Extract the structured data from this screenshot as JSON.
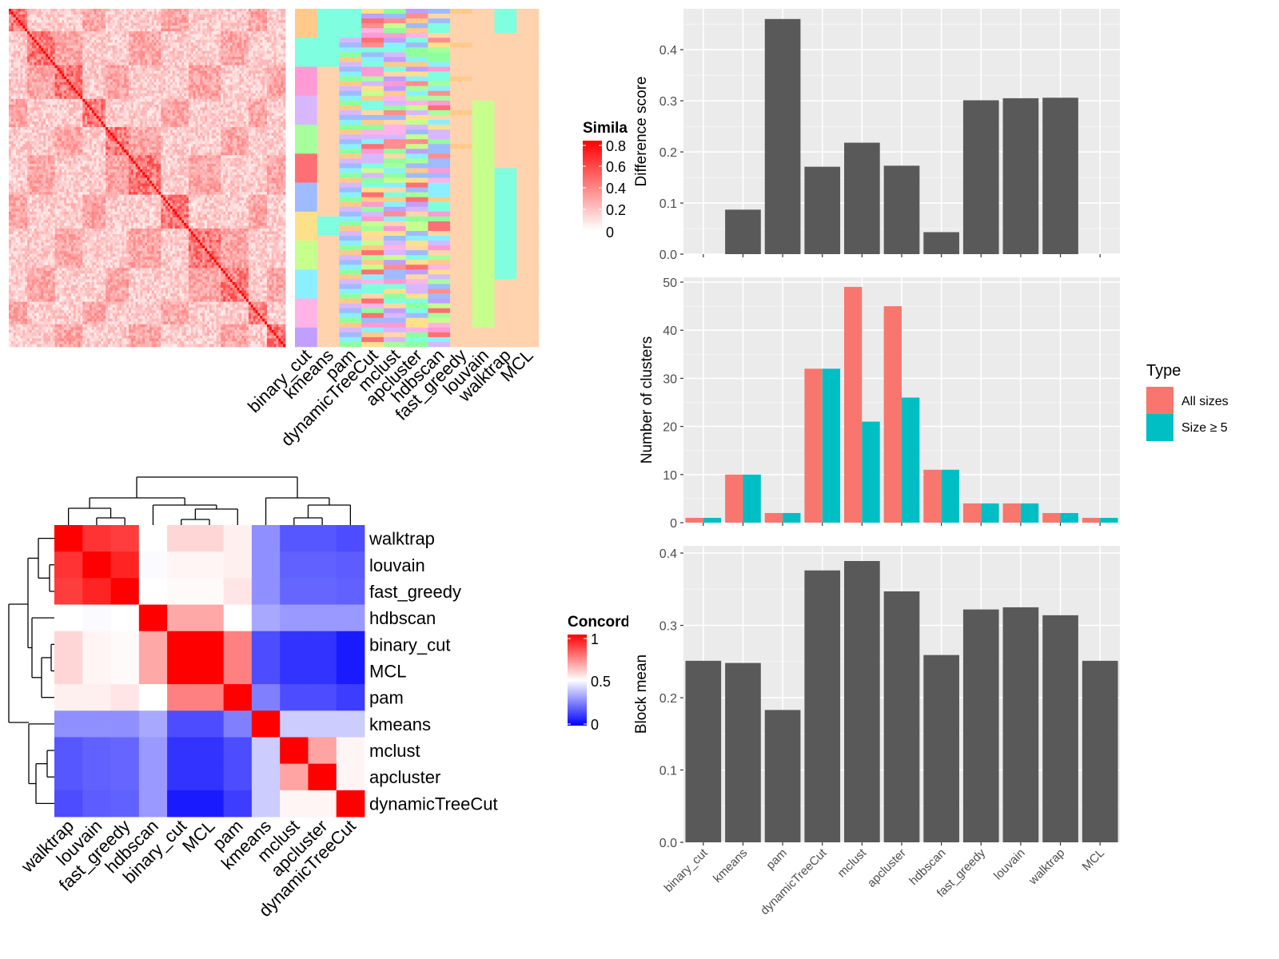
{
  "methods": [
    "binary_cut",
    "kmeans",
    "pam",
    "dynamicTreeCut",
    "mclust",
    "apcluster",
    "hdbscan",
    "fast_greedy",
    "louvain",
    "walktrap",
    "MCL"
  ],
  "similarity_legend": {
    "title": "Similarity",
    "ticks": [
      "0.8",
      "0.6",
      "0.4",
      "0.2",
      "0"
    ]
  },
  "concordance_legend": {
    "title": "Concordance",
    "ticks": [
      "1",
      "0.5",
      "0"
    ]
  },
  "colors": {
    "panel_bg": "#EBEBEB",
    "bar_dark": "#595959",
    "all_sizes": "#F8766D",
    "size_ge5": "#00BFC4",
    "high": "#FF0000",
    "mid": "#FFFFFF",
    "low": "#0000FF"
  },
  "chart_data": [
    {
      "type": "heatmap",
      "name": "similarity matrix",
      "description_scale": "white (0) to red (0.8)",
      "legend_title": "Similarity",
      "legend_ticks": [
        0,
        0.2,
        0.4,
        0.6,
        0.8
      ],
      "column_labels": [
        "binary_cut",
        "kmeans",
        "pam",
        "dynamicTreeCut",
        "mclust",
        "apcluster",
        "hdbscan",
        "fast_greedy",
        "louvain",
        "walktrap",
        "MCL"
      ]
    },
    {
      "type": "bar",
      "ylabel": "Difference score",
      "categories": [
        "binary_cut",
        "kmeans",
        "pam",
        "dynamicTreeCut",
        "mclust",
        "apcluster",
        "hdbscan",
        "fast_greedy",
        "louvain",
        "walktrap",
        "MCL"
      ],
      "values": [
        0,
        0.087,
        0.46,
        0.171,
        0.218,
        0.173,
        0.043,
        0.301,
        0.305,
        0.306,
        0
      ],
      "ylim": [
        0,
        0.48
      ],
      "yticks": [
        "0.0",
        "0.1",
        "0.2",
        "0.3",
        "0.4"
      ]
    },
    {
      "type": "bar",
      "ylabel": "Number of clusters",
      "categories": [
        "binary_cut",
        "kmeans",
        "pam",
        "dynamicTreeCut",
        "mclust",
        "apcluster",
        "hdbscan",
        "fast_greedy",
        "louvain",
        "walktrap",
        "MCL"
      ],
      "series": [
        {
          "name": "All sizes",
          "values": [
            1,
            10,
            2,
            32,
            49,
            45,
            11,
            4,
            4,
            2,
            1
          ]
        },
        {
          "name": "Size ≥ 5",
          "values": [
            1,
            10,
            2,
            32,
            21,
            26,
            11,
            4,
            4,
            2,
            1
          ]
        }
      ],
      "legend_title": "Type",
      "ylim": [
        0,
        51
      ],
      "yticks": [
        "0",
        "10",
        "20",
        "30",
        "40",
        "50"
      ]
    },
    {
      "type": "bar",
      "ylabel": "Block mean",
      "categories": [
        "binary_cut",
        "kmeans",
        "pam",
        "dynamicTreeCut",
        "mclust",
        "apcluster",
        "hdbscan",
        "fast_greedy",
        "louvain",
        "walktrap",
        "MCL"
      ],
      "values": [
        0.251,
        0.248,
        0.183,
        0.376,
        0.389,
        0.347,
        0.259,
        0.322,
        0.325,
        0.314,
        0.251
      ],
      "ylim": [
        0,
        0.41
      ],
      "yticks": [
        "0.0",
        "0.1",
        "0.2",
        "0.3",
        "0.4"
      ]
    },
    {
      "type": "heatmap",
      "name": "concordance",
      "legend_title": "Concordance",
      "legend_ticks": [
        0,
        0.5,
        1
      ],
      "row_labels": [
        "walktrap",
        "louvain",
        "fast_greedy",
        "hdbscan",
        "binary_cut",
        "MCL",
        "pam",
        "kmeans",
        "mclust",
        "apcluster",
        "dynamicTreeCut"
      ],
      "column_labels": [
        "walktrap",
        "louvain",
        "fast_greedy",
        "hdbscan",
        "binary_cut",
        "MCL",
        "pam",
        "kmeans",
        "mclust",
        "apcluster",
        "dynamicTreeCut"
      ],
      "values": [
        [
          1.0,
          0.9,
          0.88,
          0.5,
          0.58,
          0.58,
          0.53,
          0.28,
          0.17,
          0.17,
          0.15
        ],
        [
          0.9,
          1.0,
          0.93,
          0.49,
          0.52,
          0.52,
          0.53,
          0.28,
          0.19,
          0.19,
          0.18
        ],
        [
          0.88,
          0.93,
          1.0,
          0.5,
          0.51,
          0.51,
          0.55,
          0.28,
          0.2,
          0.2,
          0.19
        ],
        [
          0.5,
          0.49,
          0.5,
          1.0,
          0.67,
          0.67,
          0.5,
          0.33,
          0.3,
          0.3,
          0.3
        ],
        [
          0.58,
          0.52,
          0.51,
          0.67,
          1.0,
          1.0,
          0.75,
          0.15,
          0.1,
          0.1,
          0.05
        ],
        [
          0.58,
          0.52,
          0.51,
          0.67,
          1.0,
          1.0,
          0.75,
          0.15,
          0.1,
          0.1,
          0.05
        ],
        [
          0.53,
          0.53,
          0.55,
          0.5,
          0.75,
          0.75,
          1.0,
          0.25,
          0.15,
          0.15,
          0.12
        ],
        [
          0.28,
          0.28,
          0.28,
          0.33,
          0.15,
          0.15,
          0.25,
          1.0,
          0.4,
          0.4,
          0.4
        ],
        [
          0.17,
          0.19,
          0.2,
          0.3,
          0.1,
          0.1,
          0.15,
          0.4,
          1.0,
          0.68,
          0.52
        ],
        [
          0.17,
          0.19,
          0.2,
          0.3,
          0.1,
          0.1,
          0.15,
          0.4,
          0.68,
          1.0,
          0.52
        ],
        [
          0.15,
          0.18,
          0.19,
          0.3,
          0.05,
          0.05,
          0.12,
          0.4,
          0.52,
          0.52,
          1.0
        ]
      ]
    }
  ]
}
